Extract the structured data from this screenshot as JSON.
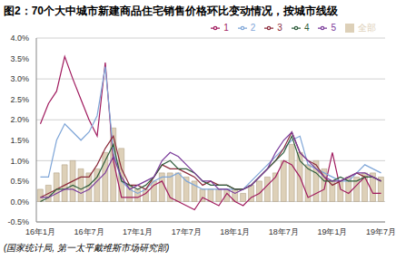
{
  "chart_data": {
    "type": "line",
    "title": "图2：70个大中城市新建商品住宅销售价格环比变动情况，按城市线级",
    "source": "(国家统计局, 第一太平戴维斯市场研究部)",
    "categories": [
      "16年1月",
      null,
      null,
      null,
      null,
      null,
      "16年7月",
      null,
      null,
      null,
      null,
      null,
      "17年1月",
      null,
      null,
      null,
      null,
      null,
      "17年7月",
      null,
      null,
      null,
      null,
      null,
      "18年1月",
      null,
      null,
      null,
      null,
      null,
      "18年7月",
      null,
      null,
      null,
      null,
      null,
      "19年1月",
      null,
      null,
      null,
      null,
      null,
      "19年7月"
    ],
    "series": [
      {
        "name": "全部",
        "type": "bar",
        "color": "#ddd0b8",
        "values": [
          0.3,
          0.4,
          0.7,
          0.9,
          1.0,
          0.8,
          0.7,
          0.8,
          1.2,
          1.8,
          1.3,
          0.4,
          0.3,
          0.3,
          0.5,
          0.7,
          0.7,
          0.7,
          0.6,
          0.5,
          0.3,
          0.3,
          0.3,
          0.3,
          0.3,
          0.2,
          0.4,
          0.5,
          0.6,
          0.7,
          1.0,
          1.4,
          1.2,
          0.9,
          1.0,
          0.8,
          0.5,
          0.5,
          0.6,
          0.6,
          0.7,
          0.7,
          0.6
        ]
      },
      {
        "name": "1",
        "type": "line",
        "color": "#a01a5e",
        "values": [
          1.9,
          2.4,
          2.7,
          3.55,
          3.0,
          2.5,
          2.0,
          1.6,
          3.4,
          1.0,
          0.1,
          0.1,
          0.1,
          0.2,
          0.4,
          0.5,
          0.1,
          0.0,
          -0.1,
          -0.2,
          0.1,
          0.0,
          -0.1,
          0.2,
          0.0,
          -0.1,
          0.1,
          0.2,
          0.4,
          0.6,
          1.0,
          0.9,
          0.6,
          0.1,
          0.2,
          0.3,
          1.2,
          0.3,
          0.2,
          0.4,
          0.6,
          0.2,
          0.2
        ]
      },
      {
        "name": "2",
        "type": "line",
        "color": "#7fa6d8",
        "values": [
          0.6,
          0.6,
          1.5,
          1.9,
          1.7,
          1.5,
          1.7,
          2.1,
          3.3,
          1.2,
          0.5,
          0.3,
          0.2,
          0.3,
          0.5,
          0.6,
          0.6,
          0.7,
          0.5,
          0.4,
          0.3,
          0.3,
          0.3,
          0.3,
          0.3,
          0.3,
          0.5,
          0.7,
          0.9,
          1.1,
          1.3,
          1.5,
          1.6,
          0.9,
          0.8,
          0.7,
          0.6,
          0.5,
          0.5,
          0.7,
          0.9,
          0.8,
          0.7
        ]
      },
      {
        "name": "3",
        "type": "line",
        "color": "#8b2a3a",
        "values": [
          0.1,
          0.2,
          0.3,
          0.4,
          0.5,
          0.6,
          0.6,
          0.9,
          1.3,
          1.6,
          0.8,
          0.4,
          0.4,
          0.3,
          0.6,
          0.9,
          0.8,
          0.8,
          0.7,
          0.6,
          0.4,
          0.5,
          0.4,
          0.4,
          0.3,
          0.3,
          0.4,
          0.6,
          0.8,
          1.0,
          1.3,
          1.7,
          1.2,
          1.0,
          0.9,
          0.6,
          0.4,
          0.5,
          0.6,
          0.7,
          0.6,
          0.6,
          0.5
        ]
      },
      {
        "name": "4",
        "type": "line",
        "color": "#2f5e3c",
        "values": [
          0.0,
          0.1,
          0.3,
          0.3,
          0.4,
          0.3,
          0.4,
          0.6,
          1.0,
          1.4,
          0.5,
          0.4,
          0.3,
          0.4,
          0.6,
          0.9,
          1.0,
          0.8,
          0.8,
          0.7,
          0.5,
          0.4,
          0.4,
          0.4,
          0.3,
          0.3,
          0.4,
          0.6,
          0.8,
          1.0,
          1.2,
          1.6,
          1.0,
          0.8,
          0.7,
          0.5,
          0.5,
          0.6,
          0.5,
          0.5,
          0.6,
          0.6,
          0.5
        ]
      },
      {
        "name": "5",
        "type": "line",
        "color": "#7a3a9a",
        "values": [
          0.1,
          0.1,
          0.2,
          0.3,
          0.3,
          0.2,
          0.3,
          0.5,
          0.7,
          1.1,
          0.6,
          0.3,
          0.4,
          0.5,
          0.6,
          1.0,
          1.2,
          1.1,
          0.9,
          0.7,
          0.5,
          0.5,
          0.3,
          0.3,
          0.2,
          0.3,
          0.4,
          0.6,
          0.8,
          1.2,
          1.5,
          1.7,
          1.2,
          1.0,
          0.8,
          0.6,
          0.5,
          0.5,
          0.6,
          0.7,
          0.7,
          0.6,
          0.5
        ]
      }
    ],
    "ylim": [
      -0.5,
      4.0
    ],
    "yticks": [
      {
        "value": -0.5,
        "label": "-0.5%"
      },
      {
        "value": 0,
        "label": "0.0%"
      },
      {
        "value": 0.5,
        "label": "0.5%"
      },
      {
        "value": 1.0,
        "label": "1.0%"
      },
      {
        "value": 1.5,
        "label": "1.5%"
      },
      {
        "value": 2.0,
        "label": "2.0%"
      },
      {
        "value": 2.5,
        "label": "2.5%"
      },
      {
        "value": 3.0,
        "label": "3.0%"
      },
      {
        "value": 3.5,
        "label": "3.5%"
      },
      {
        "value": 4.0,
        "label": "4.0%"
      }
    ],
    "grid": true,
    "legend": "top-right"
  }
}
